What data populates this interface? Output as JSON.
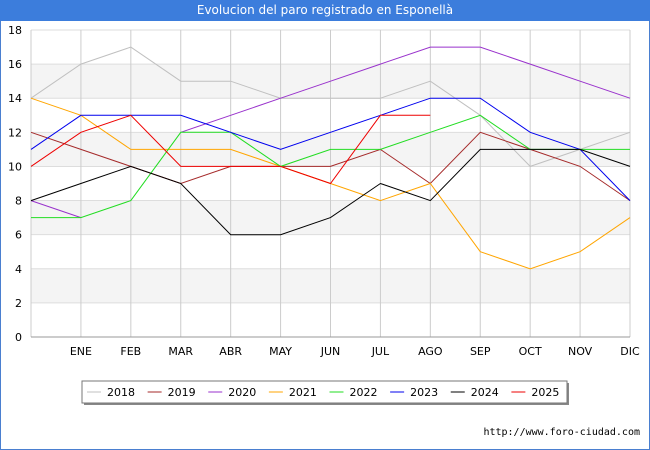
{
  "chart_data": {
    "type": "line",
    "title": "Evolucion del paro registrado en Esponellà",
    "xlabel": "",
    "ylabel": "",
    "categories": [
      "",
      "ENE",
      "FEB",
      "MAR",
      "ABR",
      "MAY",
      "JUN",
      "JUL",
      "AGO",
      "SEP",
      "OCT",
      "NOV",
      "DIC"
    ],
    "ylim": [
      0,
      18
    ],
    "yticks": [
      0,
      2,
      4,
      6,
      8,
      10,
      12,
      14,
      16,
      18
    ],
    "grid": true,
    "legend_position": "bottom",
    "series": [
      {
        "name": "2018",
        "color": "#c0c0c0",
        "values": [
          14,
          16,
          17,
          15,
          15,
          14,
          14,
          14,
          15,
          13,
          10,
          11,
          12
        ]
      },
      {
        "name": "2019",
        "color": "#a52a2a",
        "values": [
          12,
          11,
          10,
          9,
          10,
          10,
          10,
          11,
          9,
          12,
          11,
          10,
          8
        ]
      },
      {
        "name": "2020",
        "color": "#9932cc",
        "values": [
          8,
          7,
          null,
          12,
          13,
          14,
          15,
          16,
          17,
          17,
          16,
          15,
          14
        ]
      },
      {
        "name": "2021",
        "color": "#ffa500",
        "values": [
          14,
          13,
          11,
          11,
          11,
          10,
          9,
          8,
          9,
          5,
          4,
          5,
          7
        ]
      },
      {
        "name": "2022",
        "color": "#22dd22",
        "values": [
          7,
          7,
          8,
          12,
          12,
          10,
          11,
          11,
          12,
          13,
          11,
          11,
          11
        ]
      },
      {
        "name": "2023",
        "color": "#0000ee",
        "values": [
          11,
          13,
          13,
          13,
          12,
          11,
          12,
          13,
          14,
          14,
          12,
          11,
          8
        ]
      },
      {
        "name": "2024",
        "color": "#000000",
        "values": [
          8,
          9,
          10,
          9,
          6,
          6,
          7,
          9,
          8,
          11,
          11,
          11,
          10
        ]
      },
      {
        "name": "2025",
        "color": "#ee0000",
        "values": [
          10,
          12,
          13,
          10,
          10,
          10,
          9,
          13,
          13,
          null,
          null,
          null,
          null
        ]
      }
    ]
  },
  "footer": {
    "url": "http://www.foro-ciudad.com"
  }
}
